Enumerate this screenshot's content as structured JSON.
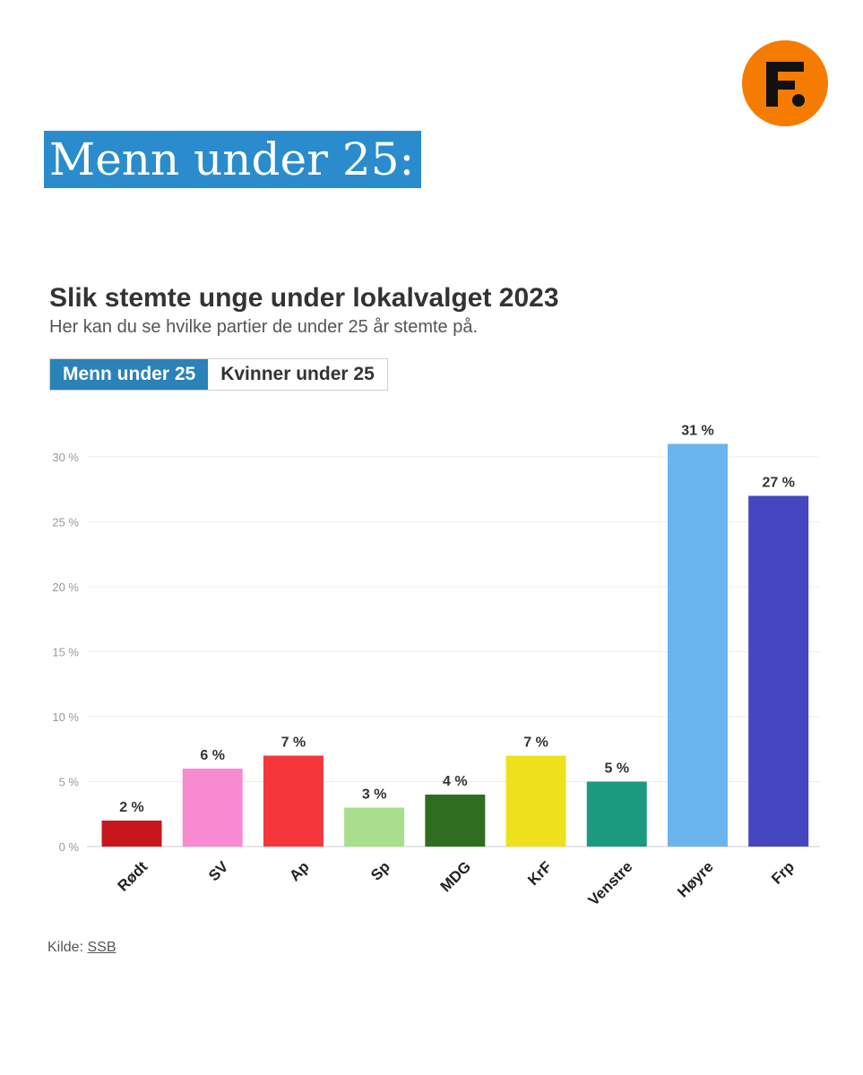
{
  "headline": "Menn under 25:",
  "tabs": [
    {
      "label": "Menn under 25",
      "active": true
    },
    {
      "label": "Kvinner under 25",
      "active": false
    }
  ],
  "source": {
    "prefix": "Kilde: ",
    "link_text": "SSB"
  },
  "colors": {
    "headline_bg": "#2a8ccc",
    "tab_active_bg": "#2a82b8",
    "logo_bg": "#f57c00"
  },
  "logo_icon": "F-brand-logo",
  "chart_data": {
    "type": "bar",
    "title": "Slik stemte unge under lokalvalget 2023",
    "subtitle": "Her kan du se hvilke partier de under 25 år stemte på.",
    "xlabel": "",
    "ylabel": "",
    "ylim": [
      0,
      32
    ],
    "yticks": [
      0,
      5,
      10,
      15,
      20,
      25,
      30
    ],
    "ytick_labels": [
      "0 %",
      "5 %",
      "10 %",
      "15 %",
      "20 %",
      "25 %",
      "30 %"
    ],
    "grid": true,
    "categories": [
      "Rødt",
      "SV",
      "Ap",
      "Sp",
      "MDG",
      "KrF",
      "Venstre",
      "Høyre",
      "Frp"
    ],
    "values": [
      2,
      6,
      7,
      3,
      4,
      7,
      5,
      31,
      27
    ],
    "value_labels": [
      "2 %",
      "6 %",
      "7 %",
      "3 %",
      "4 %",
      "7 %",
      "5 %",
      "31 %",
      "27 %"
    ],
    "colors": [
      "#c8161d",
      "#f78ad0",
      "#f5373c",
      "#a9de8c",
      "#2f6e1e",
      "#eee01d",
      "#1b9a7f",
      "#6ab4f0",
      "#4547c0"
    ]
  }
}
